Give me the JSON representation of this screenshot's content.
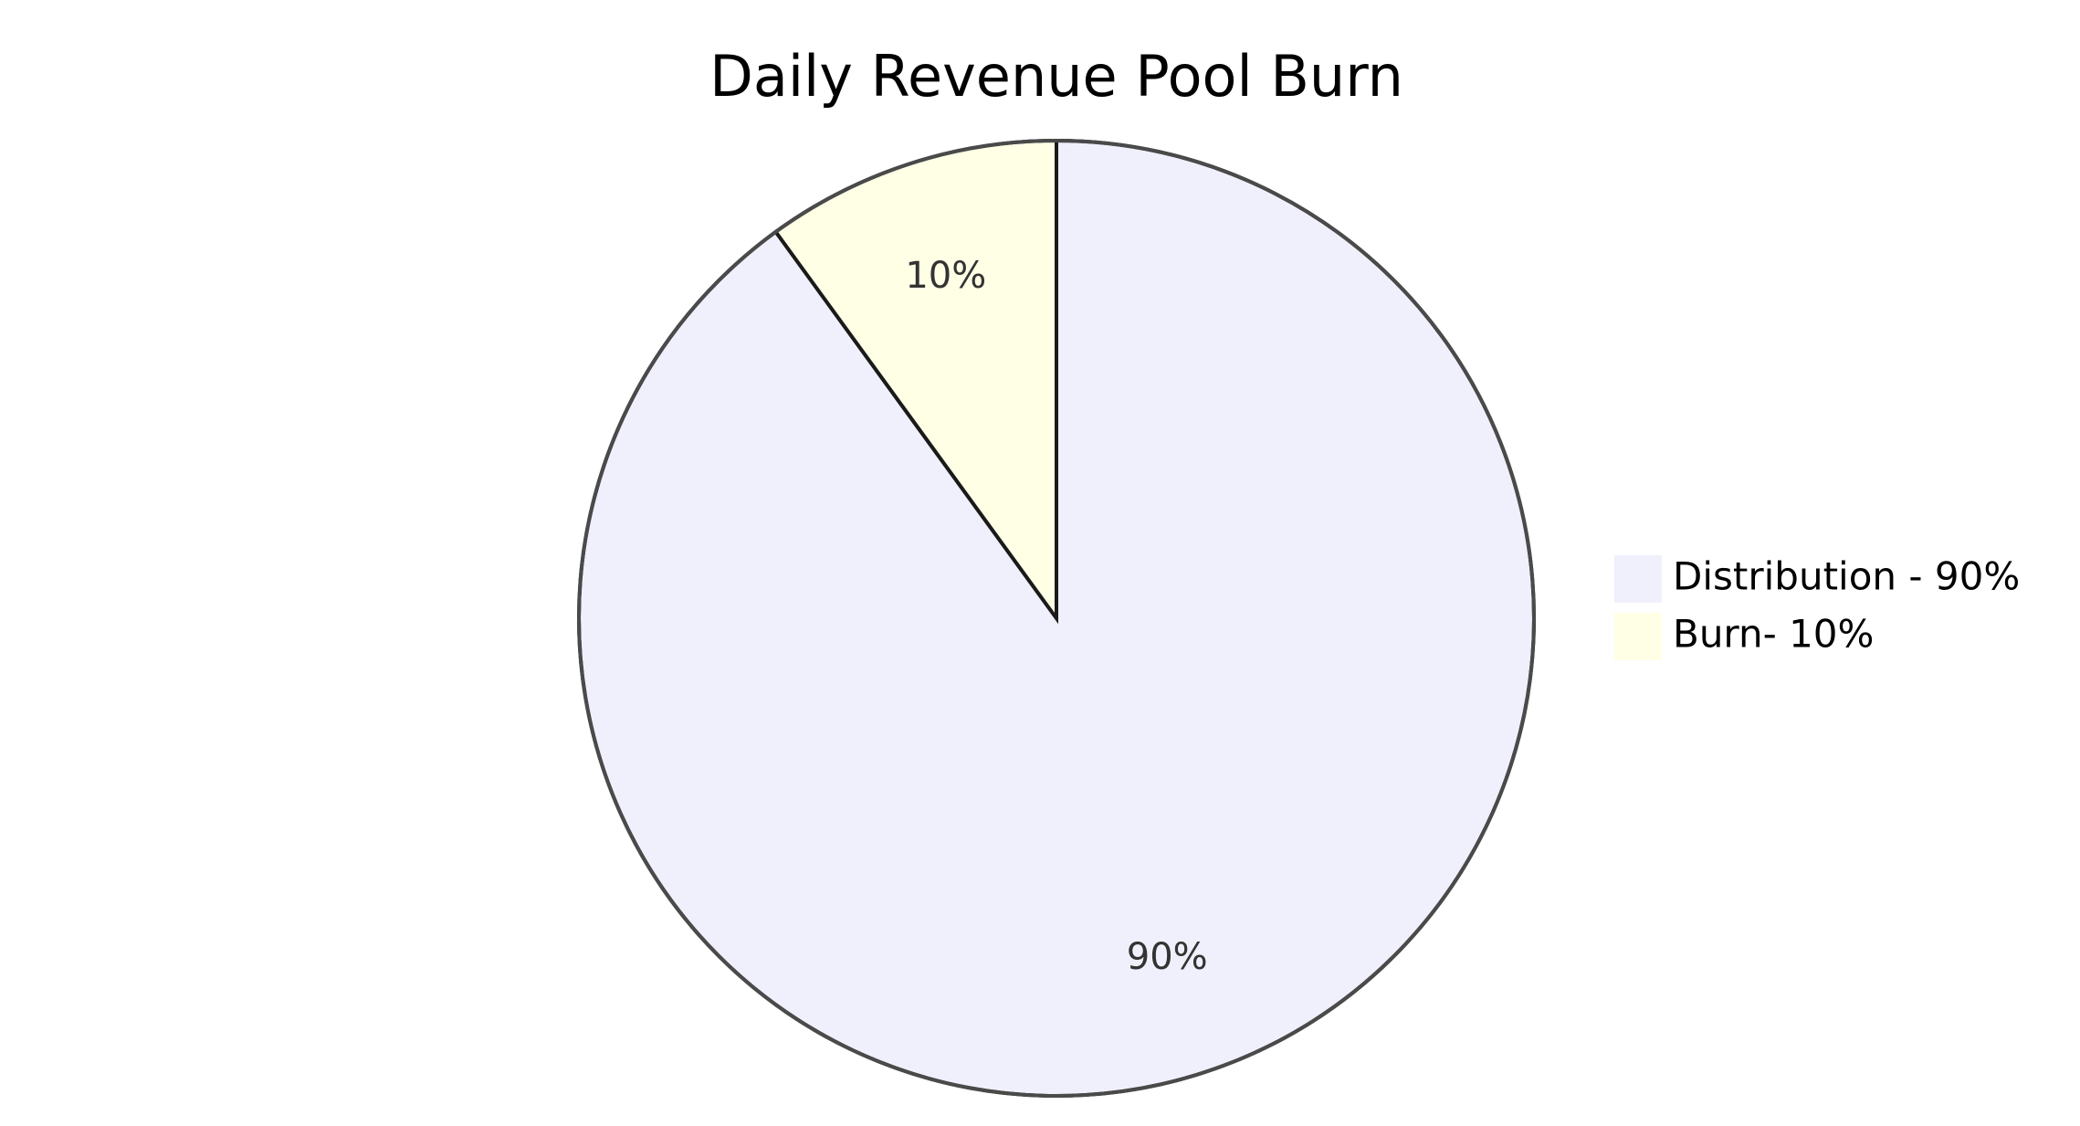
{
  "chart_data": {
    "type": "pie",
    "title": "Daily Revenue Pool Burn",
    "slices": [
      {
        "label": "Distribution - 90%",
        "value": 90,
        "percent_label": "90%",
        "color": "#f0f0fc"
      },
      {
        "label": "Burn- 10%",
        "value": 10,
        "percent_label": "10%",
        "color": "#ffffe6"
      }
    ],
    "legend_position": "right",
    "colors": {
      "outer_stroke": "#4a4a4a",
      "slice_stroke": "#1a1a1a"
    }
  }
}
